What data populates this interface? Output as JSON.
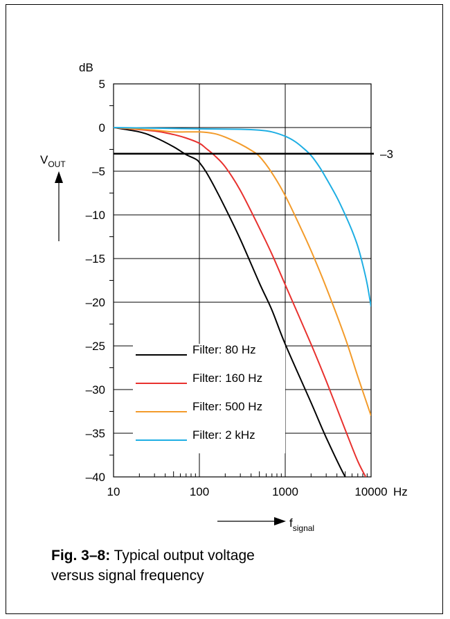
{
  "figure": {
    "label": "Fig. 3–8:",
    "caption_line1": "Typical output voltage",
    "caption_line2": "versus signal frequency"
  },
  "chart_data": {
    "type": "line",
    "x_scale": "log",
    "xlim": [
      10,
      10000
    ],
    "ylim": [
      -40,
      5
    ],
    "grid": true,
    "y_unit": "dB",
    "y_axis_label": "V",
    "y_axis_label_sub": "OUT",
    "x_axis_label": "f",
    "x_axis_label_sub": "signal",
    "x_unit": "Hz",
    "x_ticks": [
      {
        "value": 10,
        "label": "10"
      },
      {
        "value": 100,
        "label": "100"
      },
      {
        "value": 1000,
        "label": "1000"
      },
      {
        "value": 10000,
        "label": "10000"
      }
    ],
    "y_ticks": [
      {
        "value": 5,
        "label": "5"
      },
      {
        "value": 0,
        "label": "0"
      },
      {
        "value": -5,
        "label": "–5"
      },
      {
        "value": -10,
        "label": "–10"
      },
      {
        "value": -15,
        "label": "–15"
      },
      {
        "value": -20,
        "label": "–20"
      },
      {
        "value": -25,
        "label": "–25"
      },
      {
        "value": -30,
        "label": "–30"
      },
      {
        "value": -35,
        "label": "–35"
      },
      {
        "value": -40,
        "label": "–40"
      }
    ],
    "reference_line": {
      "value": -3,
      "label": "–3",
      "color": "#000000"
    },
    "legend_position": "lower-left",
    "series": [
      {
        "name": "Filter: 80 Hz",
        "color": "#000000",
        "x": [
          10,
          20,
          30,
          50,
          70,
          90,
          100,
          120,
          150,
          200,
          300,
          500,
          700,
          1000,
          2000,
          3000,
          5000,
          6000
        ],
        "y": [
          0,
          -0.5,
          -1.1,
          -2.2,
          -3.1,
          -3.6,
          -4,
          -5.1,
          -6.8,
          -9.2,
          -12.8,
          -17.8,
          -20.9,
          -24.8,
          -31.5,
          -35.5,
          -40,
          -40.8
        ]
      },
      {
        "name": "Filter: 160 Hz",
        "color": "#e8312e",
        "x": [
          10,
          30,
          50,
          70,
          100,
          120,
          150,
          200,
          300,
          500,
          700,
          1000,
          2000,
          3000,
          5000,
          7000,
          9000
        ],
        "y": [
          0,
          -0.4,
          -0.8,
          -1.2,
          -1.8,
          -2.4,
          -3.2,
          -4.5,
          -7.2,
          -11.5,
          -14.5,
          -18,
          -24.8,
          -29,
          -34.6,
          -38.2,
          -40.3
        ]
      },
      {
        "name": "Filter: 500 Hz",
        "color": "#f39b2a",
        "x": [
          10,
          30,
          50,
          100,
          150,
          200,
          300,
          400,
          500,
          700,
          1000,
          1500,
          2000,
          3000,
          5000,
          7000,
          10000
        ],
        "y": [
          0,
          -0.3,
          -0.5,
          -0.5,
          -0.7,
          -1.1,
          -1.9,
          -2.6,
          -3.3,
          -5.2,
          -7.8,
          -11.4,
          -14.1,
          -18.3,
          -24.1,
          -28.5,
          -33
        ]
      },
      {
        "name": "Filter: 2 kHz",
        "color": "#1eaee3",
        "x": [
          10,
          100,
          300,
          500,
          700,
          1000,
          1300,
          1600,
          2000,
          2500,
          3000,
          4000,
          5000,
          6000,
          7000,
          8000,
          9000,
          10000
        ],
        "y": [
          0,
          -0.15,
          -0.2,
          -0.3,
          -0.5,
          -1,
          -1.6,
          -2.3,
          -3.2,
          -4.5,
          -5.8,
          -8,
          -10,
          -11.8,
          -13.6,
          -15.7,
          -17.9,
          -20.5
        ]
      }
    ]
  }
}
